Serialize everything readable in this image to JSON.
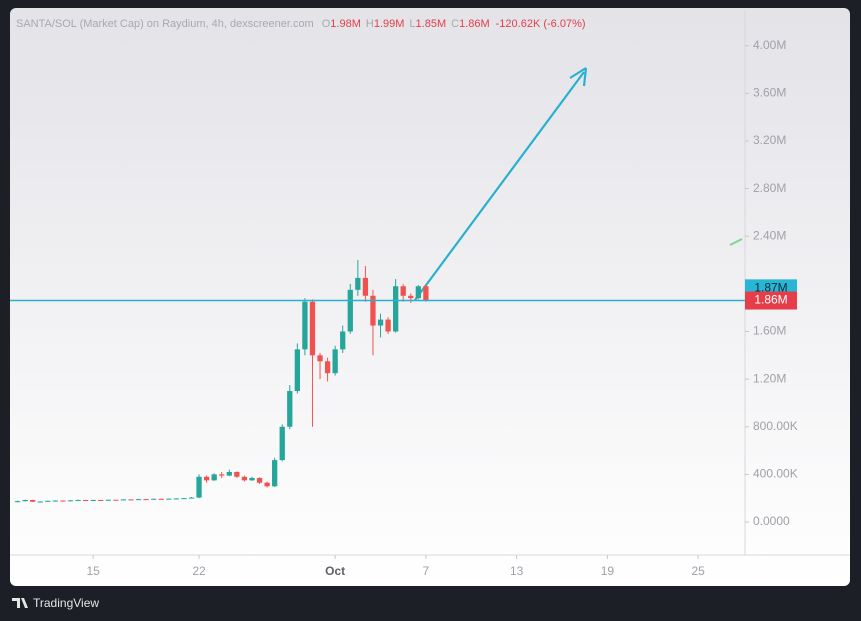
{
  "chart_data": {
    "type": "candlestick",
    "legend": {
      "symbol": "SANTA/SOL (Market Cap) on Raydium, 4h, dexscreener.com",
      "labels": [
        "O",
        "H",
        "L",
        "C"
      ],
      "values": [
        "1.98M",
        "1.99M",
        "1.85M",
        "1.86M"
      ],
      "change": "-120.62K (-6.07%)"
    },
    "x": [
      10,
      10.5,
      11,
      11.5,
      12,
      12.5,
      13,
      13.5,
      14,
      14.5,
      15,
      15.5,
      16,
      16.5,
      17,
      17.5,
      18,
      18.5,
      19,
      19.5,
      20,
      20.5,
      21,
      21.5,
      22,
      22.5,
      23,
      23.5,
      24,
      24.5,
      25,
      25.5,
      26,
      26.5,
      27,
      27.5,
      28,
      28.5,
      29,
      29.5,
      30,
      30.5,
      31,
      31.5,
      32,
      32.5,
      33,
      33.5,
      34,
      34.5,
      35,
      35.5,
      36,
      36.5,
      37
    ],
    "open": [
      170000,
      175000,
      185000,
      170000,
      172000,
      178000,
      180000,
      176000,
      182000,
      185000,
      183000,
      185000,
      184000,
      187000,
      186000,
      190000,
      188000,
      192000,
      190000,
      195000,
      194000,
      196000,
      198000,
      200000,
      205000,
      380000,
      350000,
      400000,
      390000,
      420000,
      380000,
      350000,
      370000,
      330000,
      300000,
      520000,
      800000,
      1100000,
      1450000,
      1850000,
      1400000,
      1350000,
      1250000,
      1450000,
      1600000,
      1950000,
      2050000,
      1900000,
      1650000,
      1700000,
      1600000,
      1980000,
      1900000,
      1880000,
      1980000
    ],
    "high": [
      180000,
      188000,
      187000,
      175000,
      180000,
      183000,
      182000,
      185000,
      188000,
      187000,
      188000,
      186000,
      189000,
      188000,
      192000,
      191000,
      194000,
      193000,
      197000,
      196000,
      198000,
      200000,
      202000,
      210000,
      400000,
      390000,
      410000,
      420000,
      440000,
      425000,
      390000,
      380000,
      375000,
      340000,
      540000,
      820000,
      1150000,
      1500000,
      1880000,
      1870000,
      1420000,
      1380000,
      1480000,
      1650000,
      2000000,
      2200000,
      2150000,
      1950000,
      1750000,
      1720000,
      2040000,
      2000000,
      1920000,
      1990000,
      1990000
    ],
    "low": [
      165000,
      172000,
      168000,
      166000,
      170000,
      175000,
      173000,
      174000,
      180000,
      181000,
      181000,
      182000,
      183000,
      184000,
      185000,
      186000,
      187000,
      189000,
      189000,
      192000,
      193000,
      195000,
      197000,
      199000,
      200000,
      330000,
      345000,
      370000,
      385000,
      370000,
      340000,
      345000,
      320000,
      290000,
      295000,
      510000,
      780000,
      1080000,
      1400000,
      800000,
      1200000,
      1180000,
      1230000,
      1420000,
      1580000,
      1900000,
      1850000,
      1400000,
      1550000,
      1580000,
      1590000,
      1850000,
      1840000,
      1870000,
      1850000
    ],
    "close": [
      175000,
      185000,
      170000,
      172000,
      178000,
      180000,
      176000,
      182000,
      185000,
      183000,
      185000,
      184000,
      187000,
      186000,
      190000,
      188000,
      192000,
      190000,
      195000,
      194000,
      196000,
      198000,
      200000,
      205000,
      380000,
      350000,
      400000,
      390000,
      420000,
      380000,
      350000,
      370000,
      330000,
      300000,
      520000,
      800000,
      1100000,
      1450000,
      1850000,
      1400000,
      1350000,
      1250000,
      1450000,
      1600000,
      1950000,
      2050000,
      1900000,
      1650000,
      1700000,
      1600000,
      1980000,
      1900000,
      1880000,
      1980000,
      1860000
    ],
    "up_color": "#26a69a",
    "down_color": "#ef5350",
    "xlim": [
      9.5,
      58.1
    ],
    "xticks": [
      {
        "value": 15,
        "label": "15"
      },
      {
        "value": 22,
        "label": "22"
      },
      {
        "value": 31,
        "label": "Oct"
      },
      {
        "value": 37,
        "label": "7"
      },
      {
        "value": 43,
        "label": "13"
      },
      {
        "value": 49,
        "label": "19"
      },
      {
        "value": 55,
        "label": "25"
      }
    ],
    "ylim": [
      -277000,
      4300000
    ],
    "yticks": [
      {
        "value": 0,
        "label": "0.0000"
      },
      {
        "value": 400000,
        "label": "400.00K"
      },
      {
        "value": 800000,
        "label": "800.00K"
      },
      {
        "value": 1200000,
        "label": "1.20M"
      },
      {
        "value": 1600000,
        "label": "1.60M"
      },
      {
        "value": 2400000,
        "label": "2.40M"
      },
      {
        "value": 2800000,
        "label": "2.80M"
      },
      {
        "value": 3200000,
        "label": "3.20M"
      },
      {
        "value": 3600000,
        "label": "3.60M"
      },
      {
        "value": 4000000,
        "label": "4.00M"
      }
    ],
    "price_line": {
      "value": 1860000,
      "label": "1.86M",
      "color": "#2ab0cf"
    },
    "last_marker": {
      "value": 1870000,
      "label": "1.87M",
      "color": "#29b6d6"
    },
    "grid": false
  },
  "branding": "TradingView"
}
